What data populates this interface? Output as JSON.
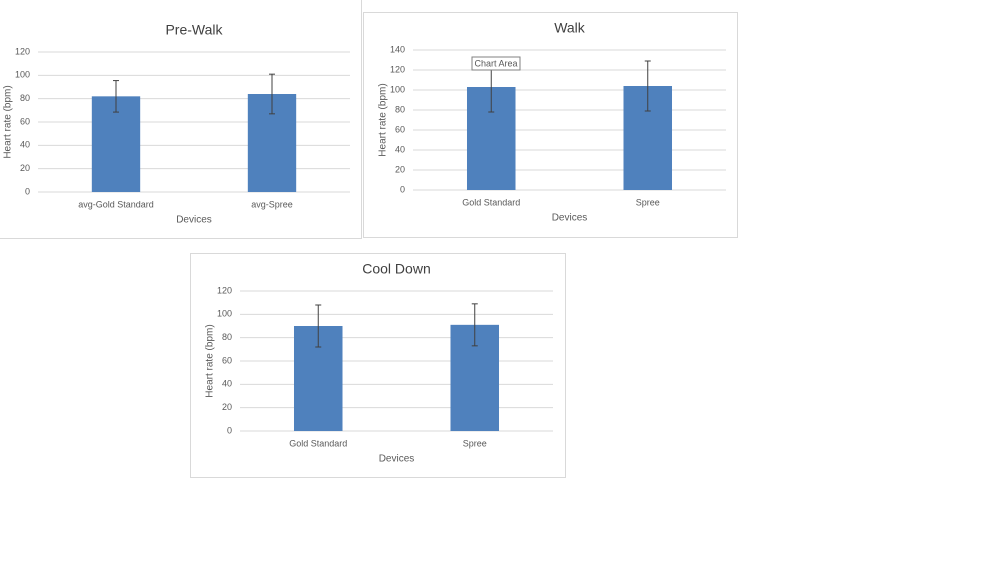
{
  "chart_data": [
    {
      "type": "bar",
      "title": "Pre-Walk",
      "xlabel": "Devices",
      "ylabel": "Heart rate (bpm)",
      "categories": [
        "avg-Gold Standard",
        "avg-Spree"
      ],
      "values": [
        82,
        84
      ],
      "errors": [
        13.5,
        17
      ],
      "color": "#4f81bd",
      "ylim": [
        0,
        120
      ],
      "yticks": [
        0,
        20,
        40,
        60,
        80,
        100,
        120
      ],
      "grid": true
    },
    {
      "type": "bar",
      "title": "Walk",
      "xlabel": "Devices",
      "ylabel": "Heart rate (bpm)",
      "categories": [
        "Gold Standard",
        "Spree"
      ],
      "values": [
        103,
        104
      ],
      "errors": [
        25,
        25
      ],
      "color": "#4f81bd",
      "ylim": [
        0,
        140
      ],
      "yticks": [
        0,
        20,
        40,
        60,
        80,
        100,
        120,
        140
      ],
      "grid": true,
      "annotation": "Chart Area"
    },
    {
      "type": "bar",
      "title": "Cool Down",
      "xlabel": "Devices",
      "ylabel": "Heart rate (bpm)",
      "categories": [
        "Gold Standard",
        "Spree"
      ],
      "values": [
        90,
        91
      ],
      "errors": [
        18,
        18
      ],
      "color": "#4f81bd",
      "ylim": [
        0,
        120
      ],
      "yticks": [
        0,
        20,
        40,
        60,
        80,
        100,
        120
      ],
      "grid": true
    }
  ]
}
